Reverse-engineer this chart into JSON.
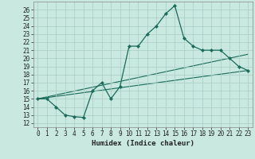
{
  "xlabel": "Humidex (Indice chaleur)",
  "background_color": "#c8e8e0",
  "grid_color": "#a8ccc4",
  "line_color": "#1a6b5a",
  "xlim": [
    -0.5,
    23.5
  ],
  "ylim": [
    11.5,
    27.0
  ],
  "xticks": [
    0,
    1,
    2,
    3,
    4,
    5,
    6,
    7,
    8,
    9,
    10,
    11,
    12,
    13,
    14,
    15,
    16,
    17,
    18,
    19,
    20,
    21,
    22,
    23
  ],
  "yticks": [
    12,
    13,
    14,
    15,
    16,
    17,
    18,
    19,
    20,
    21,
    22,
    23,
    24,
    25,
    26
  ],
  "main_x": [
    0,
    1,
    2,
    3,
    4,
    5,
    6,
    7,
    8,
    9,
    10,
    11,
    12,
    13,
    14,
    15,
    16,
    17,
    18,
    19,
    20,
    21,
    22,
    23
  ],
  "main_y": [
    15.0,
    15.0,
    14.0,
    13.0,
    12.8,
    12.7,
    16.0,
    17.0,
    15.0,
    16.5,
    21.5,
    21.5,
    23.0,
    24.0,
    25.5,
    26.5,
    22.5,
    21.5,
    21.0,
    21.0,
    21.0,
    20.0,
    19.0,
    18.5
  ],
  "trend1_x": [
    0,
    23
  ],
  "trend1_y": [
    15.0,
    18.5
  ],
  "trend2_x": [
    0,
    23
  ],
  "trend2_y": [
    15.0,
    20.5
  ],
  "label_fontsize": 6.5,
  "tick_fontsize": 5.5
}
